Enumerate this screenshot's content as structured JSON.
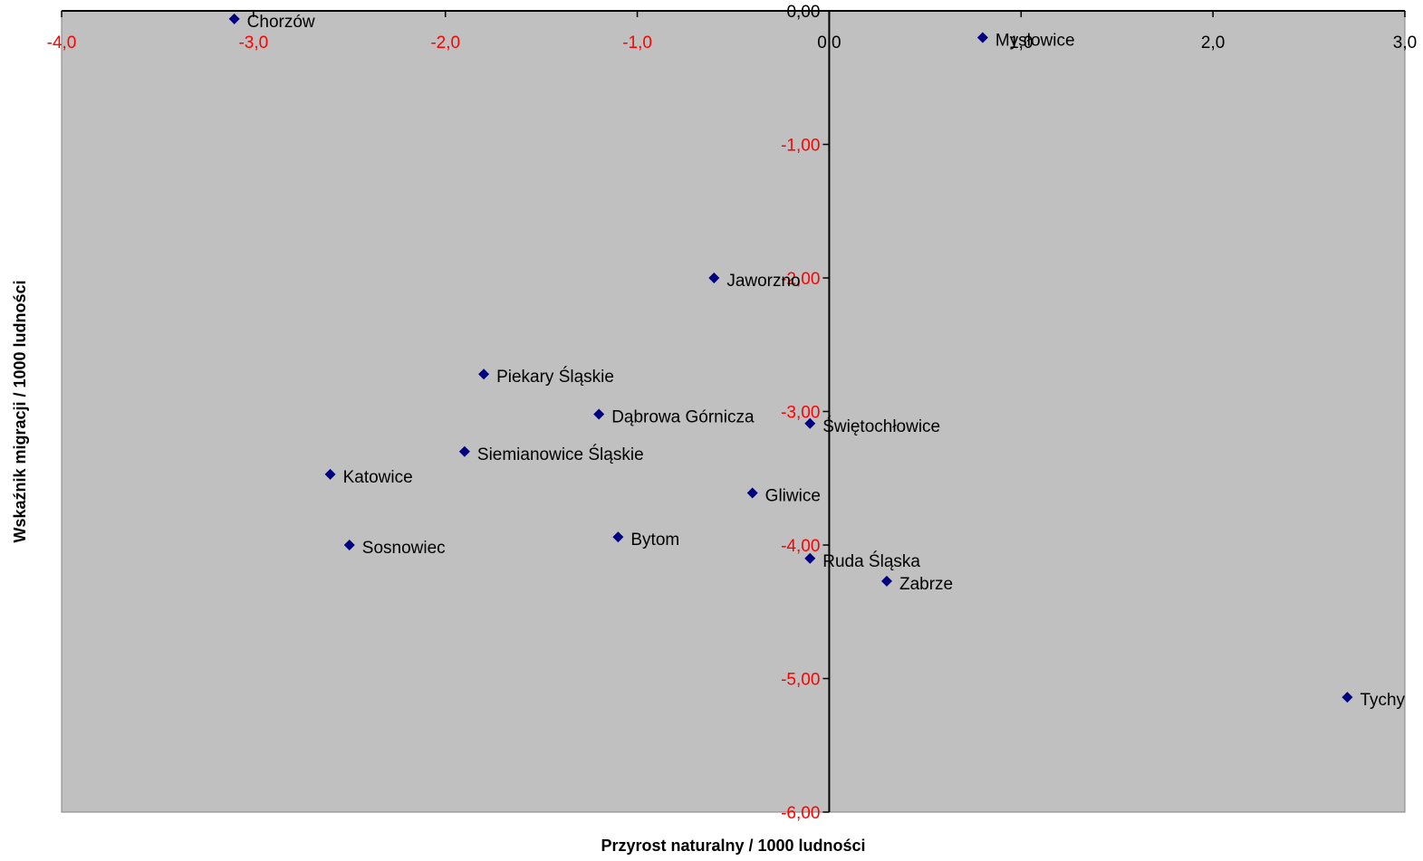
{
  "chart_data": {
    "type": "scatter",
    "xlabel": "Przyrost naturalny / 1000 ludności",
    "ylabel": "Wskaźnik migracji / 1000 ludności",
    "xlim": [
      -4.0,
      3.0
    ],
    "ylim": [
      -6.0,
      0.0
    ],
    "x_ticks": [
      {
        "value": -4.0,
        "label": "-4,0"
      },
      {
        "value": -3.0,
        "label": "-3,0"
      },
      {
        "value": -2.0,
        "label": "-2,0"
      },
      {
        "value": -1.0,
        "label": "-1,0"
      },
      {
        "value": 0.0,
        "label": "0,0"
      },
      {
        "value": 1.0,
        "label": "1,0"
      },
      {
        "value": 2.0,
        "label": "2,0"
      },
      {
        "value": 3.0,
        "label": "3,0"
      }
    ],
    "y_ticks": [
      {
        "value": 0.0,
        "label": "0,00"
      },
      {
        "value": -1.0,
        "label": "-1,00"
      },
      {
        "value": -2.0,
        "label": "-2,00"
      },
      {
        "value": -3.0,
        "label": "-3,00"
      },
      {
        "value": -4.0,
        "label": "-4,00"
      },
      {
        "value": -5.0,
        "label": "-5,00"
      },
      {
        "value": -6.0,
        "label": "-6,00"
      }
    ],
    "points": [
      {
        "label": "Chorzów",
        "x": -3.1,
        "y": -0.06
      },
      {
        "label": "Mysłowice",
        "x": 0.8,
        "y": -0.2
      },
      {
        "label": "Jaworzno",
        "x": -0.6,
        "y": -2.0
      },
      {
        "label": "Piekary Śląskie",
        "x": -1.8,
        "y": -2.72
      },
      {
        "label": "Dąbrowa Górnicza",
        "x": -1.2,
        "y": -3.02
      },
      {
        "label": "Świętochłowice",
        "x": -0.1,
        "y": -3.09
      },
      {
        "label": "Siemianowice Śląskie",
        "x": -1.9,
        "y": -3.3
      },
      {
        "label": "Katowice",
        "x": -2.6,
        "y": -3.47
      },
      {
        "label": "Gliwice",
        "x": -0.4,
        "y": -3.61
      },
      {
        "label": "Bytom",
        "x": -1.1,
        "y": -3.94
      },
      {
        "label": "Sosnowiec",
        "x": -2.5,
        "y": -4.0
      },
      {
        "label": "Ruda Śląska",
        "x": -0.1,
        "y": -4.1
      },
      {
        "label": "Zabrze",
        "x": 0.3,
        "y": -4.27
      },
      {
        "label": "Tychy",
        "x": 2.7,
        "y": -5.14
      }
    ],
    "grid": false,
    "legend": "none",
    "colors": {
      "plot_background": "#c0c0c0",
      "marker": "#000080",
      "negative_tick_labels": "#ff0000",
      "positive_tick_labels": "#000000"
    }
  }
}
